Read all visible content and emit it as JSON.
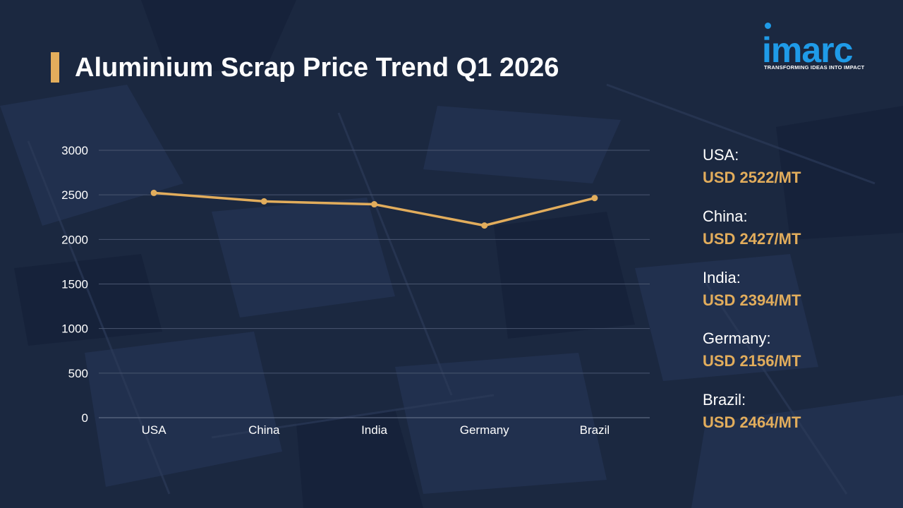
{
  "title": "Aluminium Scrap Price Trend Q1 2026",
  "logo": {
    "word": "imarc",
    "tagline": "TRANSFORMING IDEAS INTO IMPACT"
  },
  "colors": {
    "background": "#1b2840",
    "accent": "#e2ad5c",
    "brand": "#1f9be8",
    "text": "#ffffff",
    "grid": "#4a5670"
  },
  "chart_data": {
    "type": "line",
    "categories": [
      "USA",
      "China",
      "India",
      "Germany",
      "Brazil"
    ],
    "series": [
      {
        "values": [
          2522,
          2427,
          2394,
          2156,
          2464
        ]
      }
    ],
    "ylim": [
      0,
      3000
    ],
    "yticks": [
      0,
      500,
      1000,
      1500,
      2000,
      2500,
      3000
    ],
    "grid": true,
    "legend_placement": "right"
  },
  "price_labels": [
    {
      "name": "USA:",
      "price": "USD 2522/MT"
    },
    {
      "name": "China:",
      "price": "USD 2427/MT"
    },
    {
      "name": "India:",
      "price": "USD 2394/MT"
    },
    {
      "name": "Germany:",
      "price": "USD 2156/MT"
    },
    {
      "name": "Brazil:",
      "price": "USD 2464/MT"
    }
  ]
}
